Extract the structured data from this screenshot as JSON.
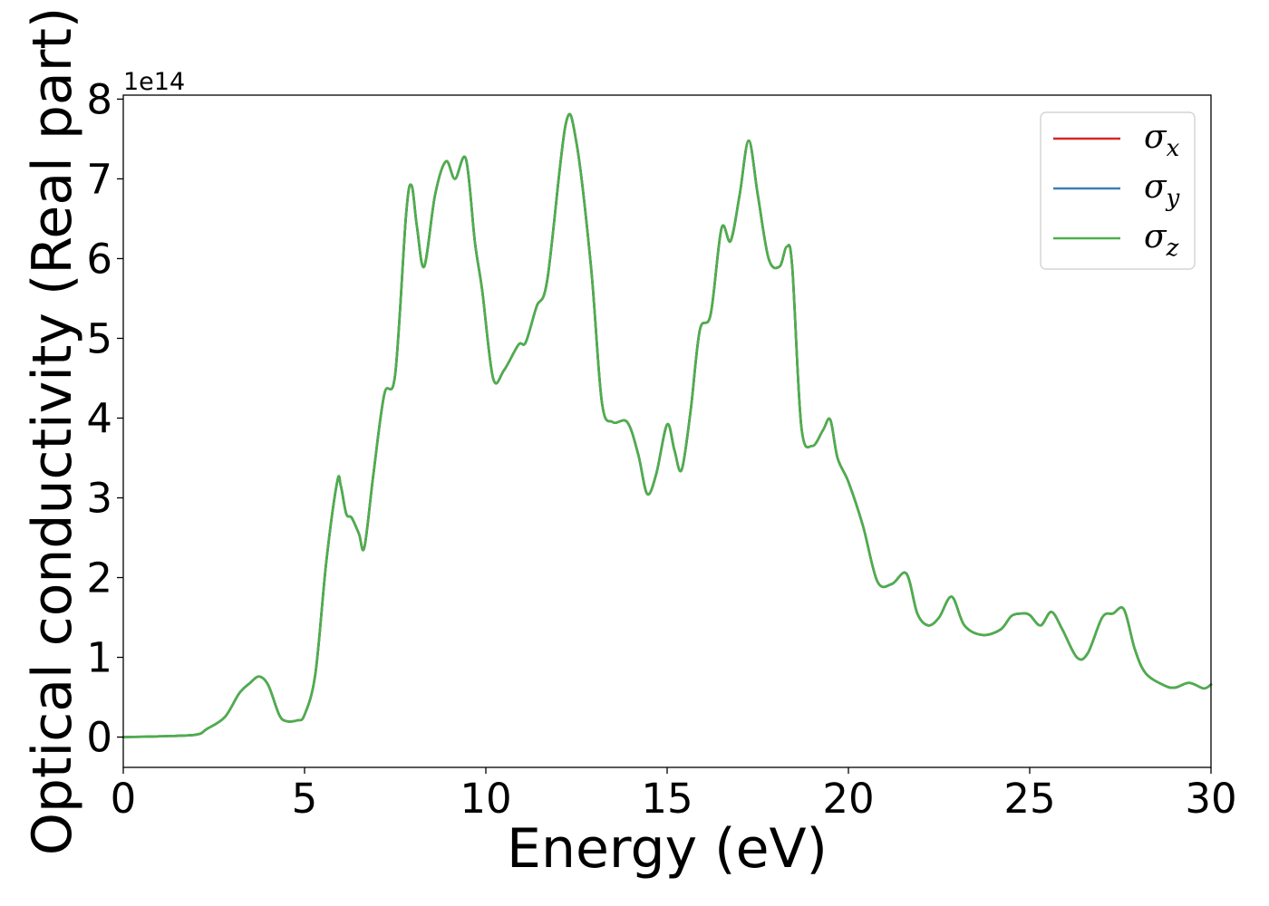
{
  "chart_data": {
    "type": "line",
    "xlabel": "Energy (eV)",
    "ylabel": "Optical conductivity (Real part)",
    "y_offset_label": "1e14",
    "y_scale_multiplier": 100000000000000.0,
    "xlim": [
      0,
      30
    ],
    "ylim": [
      -0.38,
      8.05
    ],
    "x_ticks": [
      0,
      5,
      10,
      15,
      20,
      25,
      30
    ],
    "x_tick_labels": [
      "0",
      "5",
      "10",
      "15",
      "20",
      "25",
      "30"
    ],
    "y_ticks": [
      0,
      1,
      2,
      3,
      4,
      5,
      6,
      7,
      8
    ],
    "y_tick_labels": [
      "0",
      "1",
      "2",
      "3",
      "4",
      "5",
      "6",
      "7",
      "8"
    ],
    "grid": false,
    "legend_position": "top-right",
    "legend": [
      {
        "label": "σ",
        "sub": "x",
        "color": "#d62728"
      },
      {
        "label": "σ",
        "sub": "y",
        "color": "#3a7fb8"
      },
      {
        "label": "σ",
        "sub": "z",
        "color": "#4daf4a"
      }
    ],
    "x": [
      0,
      1,
      2,
      2.3,
      2.8,
      3.2,
      3.5,
      3.75,
      4.0,
      4.3,
      4.5,
      4.8,
      5.0,
      5.3,
      5.6,
      5.9,
      6.0,
      6.15,
      6.3,
      6.5,
      6.65,
      6.9,
      7.2,
      7.5,
      7.8,
      7.95,
      8.1,
      8.3,
      8.6,
      8.9,
      9.15,
      9.45,
      9.7,
      9.9,
      10.2,
      10.5,
      10.9,
      11.1,
      11.4,
      11.7,
      12.2,
      12.5,
      12.9,
      13.2,
      13.5,
      13.9,
      14.2,
      14.45,
      14.7,
      15.0,
      15.2,
      15.4,
      15.65,
      15.9,
      16.2,
      16.5,
      16.75,
      17.0,
      17.25,
      17.5,
      17.8,
      18.1,
      18.3,
      18.45,
      18.7,
      19.0,
      19.3,
      19.5,
      19.7,
      20.0,
      20.4,
      20.8,
      21.2,
      21.6,
      21.9,
      22.2,
      22.5,
      22.85,
      23.2,
      23.7,
      24.2,
      24.5,
      24.8,
      25.0,
      25.3,
      25.6,
      25.9,
      26.3,
      26.6,
      27.0,
      27.3,
      27.6,
      27.9,
      28.2,
      28.7,
      29.0,
      29.4,
      29.8,
      30.0
    ],
    "series": [
      {
        "name": "σx",
        "color": "#d62728",
        "values": [
          0.0,
          0.01,
          0.03,
          0.1,
          0.25,
          0.55,
          0.68,
          0.76,
          0.65,
          0.28,
          0.2,
          0.21,
          0.28,
          0.8,
          2.2,
          3.2,
          3.15,
          2.8,
          2.75,
          2.55,
          2.38,
          3.3,
          4.3,
          4.55,
          6.55,
          6.92,
          6.4,
          5.9,
          6.8,
          7.22,
          7.0,
          7.25,
          6.2,
          5.6,
          4.5,
          4.6,
          4.92,
          4.95,
          5.4,
          5.75,
          7.68,
          7.45,
          5.9,
          4.2,
          3.95,
          3.95,
          3.55,
          3.05,
          3.3,
          3.92,
          3.6,
          3.35,
          4.1,
          5.1,
          5.3,
          6.38,
          6.22,
          6.8,
          7.48,
          6.8,
          6.0,
          5.9,
          6.15,
          5.9,
          3.9,
          3.65,
          3.85,
          3.98,
          3.5,
          3.2,
          2.65,
          1.95,
          1.92,
          2.05,
          1.55,
          1.4,
          1.5,
          1.76,
          1.4,
          1.28,
          1.35,
          1.52,
          1.55,
          1.53,
          1.4,
          1.57,
          1.35,
          1.0,
          1.05,
          1.5,
          1.55,
          1.6,
          1.1,
          0.8,
          0.65,
          0.62,
          0.68,
          0.61,
          0.66
        ]
      },
      {
        "name": "σy",
        "color": "#3a7fb8",
        "values": [
          0.0,
          0.01,
          0.03,
          0.1,
          0.25,
          0.55,
          0.68,
          0.76,
          0.65,
          0.28,
          0.2,
          0.21,
          0.28,
          0.8,
          2.2,
          3.2,
          3.15,
          2.8,
          2.75,
          2.55,
          2.38,
          3.3,
          4.3,
          4.55,
          6.55,
          6.92,
          6.4,
          5.9,
          6.8,
          7.22,
          7.0,
          7.25,
          6.2,
          5.6,
          4.5,
          4.6,
          4.92,
          4.95,
          5.4,
          5.75,
          7.68,
          7.45,
          5.9,
          4.2,
          3.95,
          3.95,
          3.55,
          3.05,
          3.3,
          3.92,
          3.6,
          3.35,
          4.1,
          5.1,
          5.3,
          6.38,
          6.22,
          6.8,
          7.48,
          6.8,
          6.0,
          5.9,
          6.15,
          5.9,
          3.9,
          3.65,
          3.85,
          3.98,
          3.5,
          3.2,
          2.65,
          1.95,
          1.92,
          2.05,
          1.55,
          1.4,
          1.5,
          1.76,
          1.4,
          1.28,
          1.35,
          1.52,
          1.55,
          1.53,
          1.4,
          1.57,
          1.35,
          1.0,
          1.05,
          1.5,
          1.55,
          1.6,
          1.1,
          0.8,
          0.65,
          0.62,
          0.68,
          0.61,
          0.66
        ]
      },
      {
        "name": "σz",
        "color": "#4daf4a",
        "values": [
          0.0,
          0.01,
          0.03,
          0.1,
          0.25,
          0.55,
          0.68,
          0.76,
          0.65,
          0.28,
          0.2,
          0.21,
          0.28,
          0.8,
          2.2,
          3.2,
          3.15,
          2.8,
          2.75,
          2.55,
          2.38,
          3.3,
          4.3,
          4.55,
          6.55,
          6.92,
          6.4,
          5.9,
          6.8,
          7.22,
          7.0,
          7.25,
          6.2,
          5.6,
          4.5,
          4.6,
          4.92,
          4.95,
          5.4,
          5.75,
          7.68,
          7.45,
          5.9,
          4.2,
          3.95,
          3.95,
          3.55,
          3.05,
          3.3,
          3.92,
          3.6,
          3.35,
          4.1,
          5.1,
          5.3,
          6.38,
          6.22,
          6.8,
          7.48,
          6.8,
          6.0,
          5.9,
          6.15,
          5.9,
          3.9,
          3.65,
          3.85,
          3.98,
          3.5,
          3.2,
          2.65,
          1.95,
          1.92,
          2.05,
          1.55,
          1.4,
          1.5,
          1.76,
          1.4,
          1.28,
          1.35,
          1.52,
          1.55,
          1.53,
          1.4,
          1.57,
          1.35,
          1.0,
          1.05,
          1.5,
          1.55,
          1.6,
          1.1,
          0.8,
          0.65,
          0.62,
          0.68,
          0.61,
          0.66
        ]
      }
    ]
  }
}
